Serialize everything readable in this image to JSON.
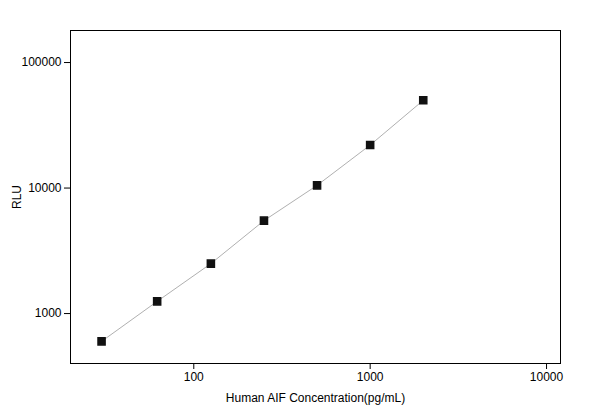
{
  "chart_data": {
    "type": "line",
    "xlabel": "Human AIF Concentration(pg/mL)",
    "ylabel": "RLU",
    "x": [
      30,
      62,
      125,
      250,
      500,
      1000,
      2000
    ],
    "series": [
      {
        "type": "line",
        "color": "#b0b0b0",
        "values": [
          600,
          1250,
          2500,
          5500,
          10500,
          22000,
          50000
        ]
      },
      {
        "type": "scatter",
        "color": "#111111",
        "marker": "square",
        "values": [
          600,
          1250,
          2500,
          5500,
          10500,
          22000,
          50000
        ]
      }
    ],
    "log": true,
    "xlim": [
      20,
      12000
    ],
    "xticks": [
      100,
      1000,
      10000
    ],
    "ylim": [
      400,
      180000
    ],
    "yticks": [
      1000,
      10000,
      100000
    ],
    "grid": false
  }
}
